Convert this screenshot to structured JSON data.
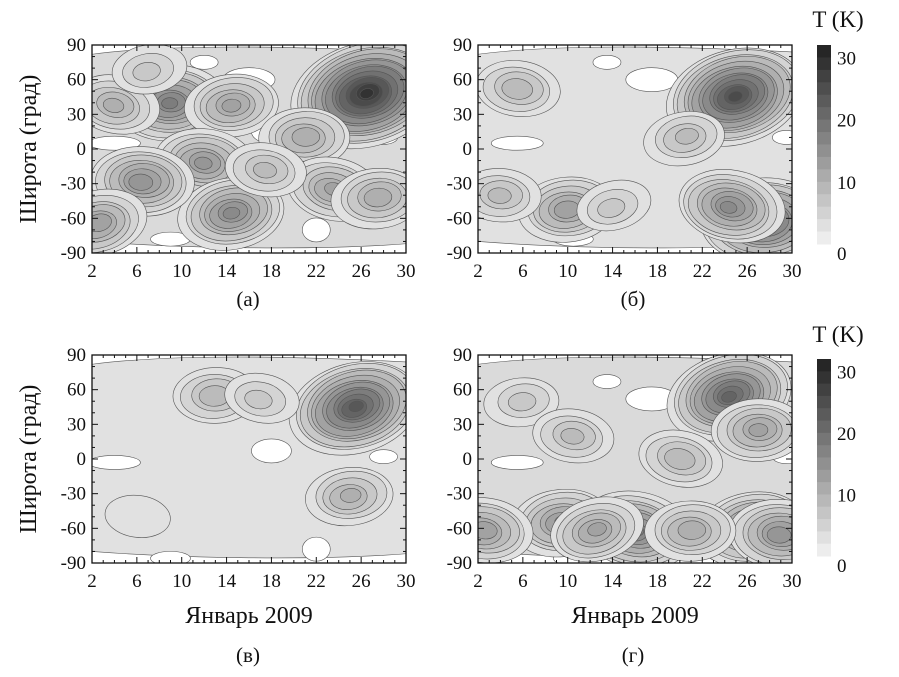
{
  "chart_data": [
    {
      "type": "heatmap",
      "panel_label": "(а)",
      "ylabel": "Широта (град)",
      "xlabel": "",
      "xlim": [
        2,
        30
      ],
      "ylim": [
        -90,
        90
      ],
      "xticks": [
        2,
        6,
        10,
        14,
        18,
        22,
        26,
        30
      ],
      "yticks": [
        90,
        60,
        30,
        0,
        -30,
        -60,
        -90
      ],
      "blobs": [
        {
          "x": 26.5,
          "y": 48,
          "value": 30
        },
        {
          "x": 9,
          "y": 40,
          "value": 18
        },
        {
          "x": 4,
          "y": 38,
          "value": 10
        },
        {
          "x": 14.5,
          "y": 38,
          "value": 12
        },
        {
          "x": 12,
          "y": -12,
          "value": 14
        },
        {
          "x": 14.5,
          "y": -55,
          "value": 16
        },
        {
          "x": 6.5,
          "y": -28,
          "value": 15
        },
        {
          "x": 2.5,
          "y": -65,
          "value": 13
        },
        {
          "x": 21,
          "y": 10,
          "value": 11
        },
        {
          "x": 23.5,
          "y": -35,
          "value": 12
        },
        {
          "x": 27.5,
          "y": -42,
          "value": 11
        },
        {
          "x": 17.5,
          "y": -18,
          "value": 8
        },
        {
          "x": 7,
          "y": 68,
          "value": 6
        }
      ],
      "background_max": 3,
      "levels": [
        2,
        4,
        6,
        8,
        10,
        12,
        14,
        16,
        18,
        20,
        22,
        24,
        26,
        28,
        30
      ]
    },
    {
      "type": "heatmap",
      "panel_label": "(б)",
      "colorbar_label": "T (K)",
      "colorbar_ticks": [
        30,
        20,
        10,
        0
      ],
      "xlabel": "",
      "ylabel": "",
      "xlim": [
        2,
        30
      ],
      "ylim": [
        -90,
        90
      ],
      "xticks": [
        2,
        6,
        10,
        14,
        18,
        22,
        26,
        30
      ],
      "yticks": [
        90,
        60,
        30,
        0,
        -30,
        -60,
        -90
      ],
      "blobs": [
        {
          "x": 25,
          "y": 46,
          "value": 26
        },
        {
          "x": 27.5,
          "y": -62,
          "value": 22
        },
        {
          "x": 24.5,
          "y": -50,
          "value": 16
        },
        {
          "x": 10,
          "y": -52,
          "value": 13
        },
        {
          "x": 5.5,
          "y": 52,
          "value": 9
        },
        {
          "x": 20.5,
          "y": 10,
          "value": 8
        },
        {
          "x": 4,
          "y": -40,
          "value": 8
        },
        {
          "x": 14,
          "y": -50,
          "value": 6
        }
      ],
      "background_max": 2,
      "levels": [
        2,
        4,
        6,
        8,
        10,
        12,
        14,
        16,
        18,
        20,
        22,
        24,
        26,
        28,
        30
      ]
    },
    {
      "type": "heatmap",
      "panel_label": "(в)",
      "ylabel": "Широта (град)",
      "xlabel": "Январь 2009",
      "xlim": [
        2,
        30
      ],
      "ylim": [
        -90,
        90
      ],
      "xticks": [
        2,
        6,
        10,
        14,
        18,
        22,
        26,
        30
      ],
      "yticks": [
        90,
        60,
        30,
        0,
        -30,
        -60,
        -90
      ],
      "blobs": [
        {
          "x": 25.5,
          "y": 45,
          "value": 24
        },
        {
          "x": 13,
          "y": 55,
          "value": 9
        },
        {
          "x": 17,
          "y": 52,
          "value": 6
        },
        {
          "x": 25,
          "y": -32,
          "value": 10
        },
        {
          "x": 6,
          "y": -50,
          "value": 3
        }
      ],
      "background_max": 2,
      "levels": [
        2,
        4,
        6,
        8,
        10,
        12,
        14,
        16,
        18,
        20,
        22,
        24,
        26,
        28,
        30
      ]
    },
    {
      "type": "heatmap",
      "panel_label": "(г)",
      "colorbar_label": "T (K)",
      "colorbar_ticks": [
        30,
        20,
        10,
        0
      ],
      "xlabel": "Январь 2009",
      "ylabel": "",
      "xlim": [
        2,
        30
      ],
      "ylim": [
        -90,
        90
      ],
      "xticks": [
        2,
        6,
        10,
        14,
        18,
        22,
        26,
        30
      ],
      "yticks": [
        90,
        60,
        30,
        0,
        -30,
        -60,
        -90
      ],
      "blobs": [
        {
          "x": 24.5,
          "y": 55,
          "value": 22
        },
        {
          "x": 27,
          "y": 25,
          "value": 12
        },
        {
          "x": 16,
          "y": -62,
          "value": 18
        },
        {
          "x": 9.5,
          "y": -55,
          "value": 14
        },
        {
          "x": 2.5,
          "y": -62,
          "value": 13
        },
        {
          "x": 26.5,
          "y": -60,
          "value": 17
        },
        {
          "x": 29,
          "y": -65,
          "value": 15
        },
        {
          "x": 12.5,
          "y": -62,
          "value": 12
        },
        {
          "x": 21,
          "y": -62,
          "value": 11
        },
        {
          "x": 20,
          "y": 0,
          "value": 9
        },
        {
          "x": 6,
          "y": 50,
          "value": 6
        },
        {
          "x": 10.5,
          "y": 20,
          "value": 8
        }
      ],
      "background_max": 3,
      "levels": [
        2,
        4,
        6,
        8,
        10,
        12,
        14,
        16,
        18,
        20,
        22,
        24,
        26,
        28,
        30
      ]
    }
  ],
  "colors": {
    "low": "#ededed",
    "high": "#262626",
    "contour": "#555555",
    "axis": "#111111"
  }
}
